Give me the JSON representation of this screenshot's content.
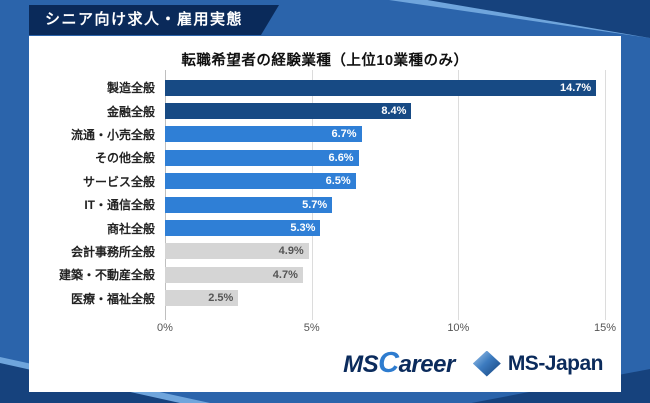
{
  "banner": {
    "title": "シニア向け求人・雇用実態"
  },
  "chart_data": {
    "type": "bar",
    "orientation": "horizontal",
    "title": "転職希望者の経験業種（上位10業種のみ）",
    "categories": [
      "製造全般",
      "金融全般",
      "流通・小売全般",
      "その他全般",
      "サービス全般",
      "IT・通信全般",
      "商社全般",
      "会計事務所全般",
      "建築・不動産全般",
      "医療・福祉全般"
    ],
    "values": [
      14.7,
      8.4,
      6.7,
      6.6,
      6.5,
      5.7,
      5.3,
      4.9,
      4.7,
      2.5
    ],
    "value_labels": [
      "14.7%",
      "8.4%",
      "6.7%",
      "6.6%",
      "6.5%",
      "5.7%",
      "5.3%",
      "4.9%",
      "4.7%",
      "2.5%"
    ],
    "bar_palette": [
      "dark",
      "dark",
      "mid",
      "mid",
      "mid",
      "mid",
      "mid",
      "gray",
      "gray",
      "gray"
    ],
    "xlim": [
      0,
      15
    ],
    "x_tick_values": [
      0,
      5,
      10,
      15
    ],
    "x_tick_labels": [
      "0%",
      "5%",
      "10%",
      "15%"
    ],
    "grid": true,
    "legend": false
  },
  "colors": {
    "dark": "#174A84",
    "mid": "#2F7FD6",
    "gray": "#D5D5D5",
    "gray_text": "#555555",
    "white_text": "#FFFFFF",
    "background": "#2B64AB",
    "banner": "#0A2A5A",
    "accent_light": "#6FA5DC",
    "accent_dark": "#16427D",
    "logo_navy": "#0B2B5C",
    "logo_blue": "#2E7CCF"
  },
  "footer": {
    "mscareer_ms": "MS",
    "mscareer_c": "C",
    "mscareer_rest": "areer",
    "msjapan": "MS-Japan"
  }
}
